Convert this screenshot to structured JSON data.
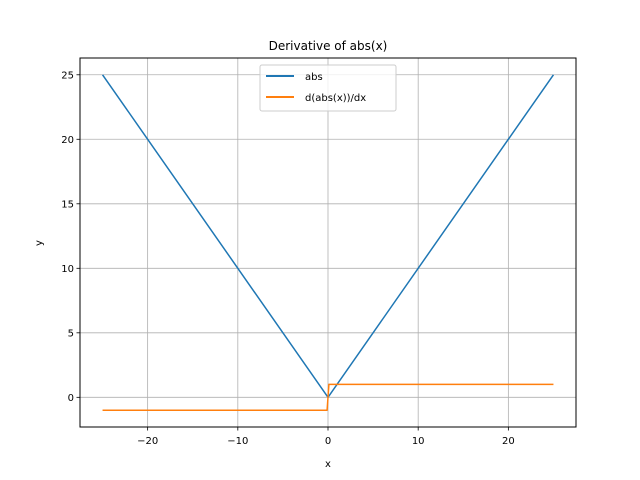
{
  "chart_data": {
    "type": "line",
    "title": "Derivative of abs(x)",
    "xlabel": "x",
    "ylabel": "y",
    "xlim": [
      -27.5,
      27.5
    ],
    "ylim": [
      -2.3,
      26.3
    ],
    "xticks": [
      -20,
      -10,
      0,
      10,
      20
    ],
    "yticks": [
      0,
      5,
      10,
      15,
      20,
      25
    ],
    "xtick_labels": [
      "−20",
      "−10",
      "0",
      "10",
      "20"
    ],
    "ytick_labels": [
      "0",
      "5",
      "10",
      "15",
      "20",
      "25"
    ],
    "grid": true,
    "legend_position": "top-center",
    "series": [
      {
        "name": "abs",
        "color": "#1f77b4",
        "x": [
          -25,
          0,
          25
        ],
        "y": [
          25,
          0,
          25
        ]
      },
      {
        "name": "d(abs(x))/dx",
        "color": "#ff7f0e",
        "x": [
          -25,
          -0.1,
          0.1,
          25
        ],
        "y": [
          -1,
          -1,
          1,
          1
        ]
      }
    ]
  }
}
